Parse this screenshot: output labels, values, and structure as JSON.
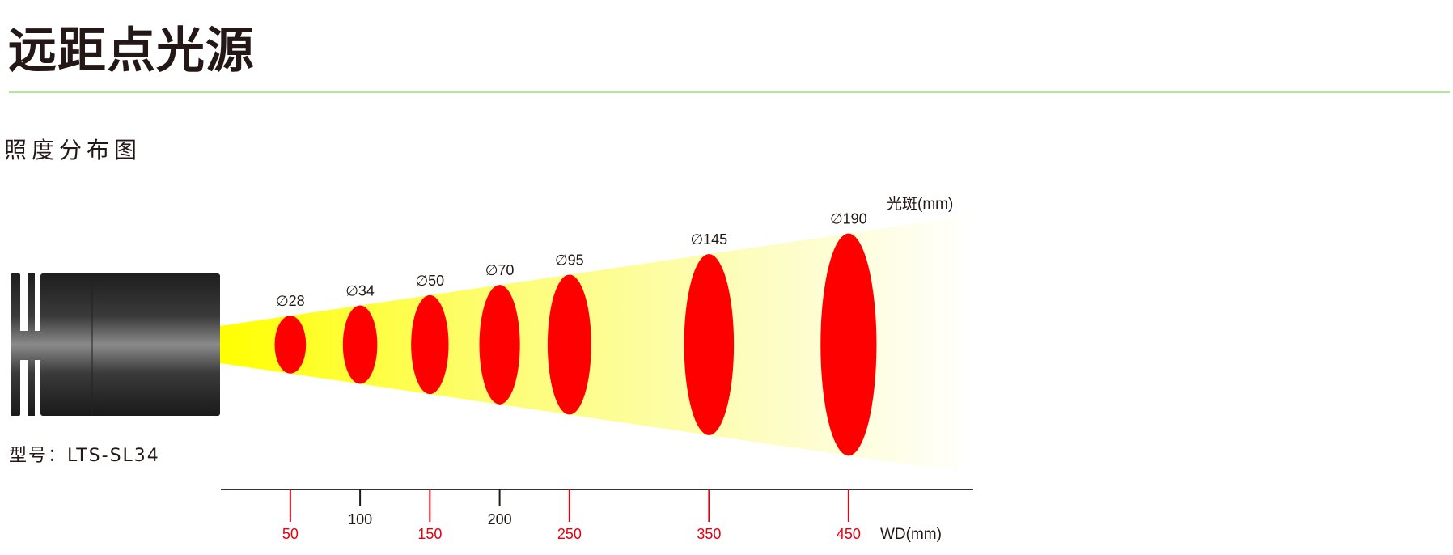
{
  "header": {
    "title": "远距点光源"
  },
  "section": {
    "subtitle": "照度分布图"
  },
  "product": {
    "model_label": "型号：LTS-SL34"
  },
  "colors": {
    "spot": "#ff0000",
    "beam": "#ffff00",
    "accent_line": "#b8e2a2",
    "red_tick": "#e60012",
    "text": "#231815"
  },
  "chart_data": {
    "type": "diagram",
    "xlabel": "WD(mm)",
    "ylabel": "光斑(mm)",
    "spot_prefix": "∅",
    "x_ticks": [
      {
        "value": 50,
        "label": "50",
        "highlight": true
      },
      {
        "value": 100,
        "label": "100",
        "highlight": false
      },
      {
        "value": 150,
        "label": "150",
        "highlight": true
      },
      {
        "value": 200,
        "label": "200",
        "highlight": false
      },
      {
        "value": 250,
        "label": "250",
        "highlight": true
      },
      {
        "value": 350,
        "label": "350",
        "highlight": true
      },
      {
        "value": 450,
        "label": "450",
        "highlight": true
      }
    ],
    "spots": [
      {
        "wd": 50,
        "diameter": 28,
        "label": "∅28"
      },
      {
        "wd": 100,
        "diameter": 34,
        "label": "∅34"
      },
      {
        "wd": 150,
        "diameter": 50,
        "label": "∅50"
      },
      {
        "wd": 200,
        "diameter": 70,
        "label": "∅70"
      },
      {
        "wd": 250,
        "diameter": 95,
        "label": "∅95"
      },
      {
        "wd": 350,
        "diameter": 145,
        "label": "∅145"
      },
      {
        "wd": 450,
        "diameter": 190,
        "label": "∅190"
      }
    ]
  }
}
